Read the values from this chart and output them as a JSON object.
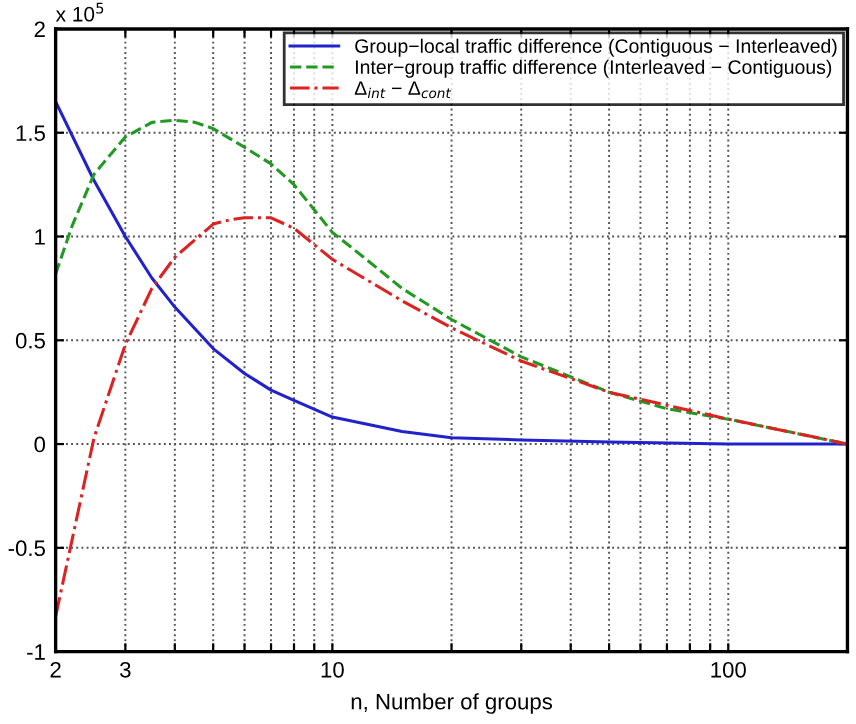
{
  "chart_data": {
    "type": "line",
    "xlabel": "n, Number of groups",
    "annotations": [
      "x 10$^{5}$"
    ],
    "log": "x",
    "grid": true,
    "legend": "top right",
    "marker": "none",
    "xlim": [
      2,
      200
    ],
    "ylim": [
      -1,
      2
    ],
    "xticks": [
      2,
      3,
      {
        "value": 4,
        "label": null
      },
      {
        "value": 5,
        "label": null
      },
      {
        "value": 6,
        "label": null
      },
      {
        "value": 7,
        "label": null
      },
      {
        "value": 8,
        "label": null
      },
      {
        "value": 9,
        "label": null
      },
      10,
      {
        "value": 20,
        "label": null
      },
      {
        "value": 30,
        "label": null
      },
      {
        "value": 40,
        "label": null
      },
      {
        "value": 50,
        "label": null
      },
      {
        "value": 60,
        "label": null
      },
      {
        "value": 70,
        "label": null
      },
      {
        "value": 80,
        "label": null
      },
      {
        "value": 90,
        "label": null
      },
      100,
      {
        "value": 200,
        "label": null
      }
    ],
    "yticks": [
      -1,
      -0.5,
      0,
      0.5,
      1,
      1.5,
      2
    ],
    "series": [
      {
        "name": "Group−local traffic difference (Contiguous − Interleaved)",
        "color": "#2222cc",
        "line_style": "solid",
        "x": [
          2,
          2.5,
          3,
          3.5,
          4,
          5,
          6,
          7,
          8,
          10,
          15,
          20,
          30,
          50,
          100,
          200
        ],
        "values": [
          1.65,
          1.27,
          1.0,
          0.8,
          0.66,
          0.46,
          0.34,
          0.26,
          0.21,
          0.13,
          0.06,
          0.03,
          0.02,
          0.01,
          0,
          0
        ]
      },
      {
        "name": "Inter−group traffic difference (Interleaved − Contiguous)",
        "color": "#229922",
        "line_style": "dashed",
        "x": [
          2,
          2.2,
          2.5,
          3,
          3.5,
          4,
          4.5,
          5,
          6,
          7,
          8,
          10,
          12,
          15,
          20,
          30,
          50,
          70,
          100,
          150,
          200
        ],
        "values": [
          0.82,
          1.05,
          1.3,
          1.48,
          1.55,
          1.56,
          1.55,
          1.52,
          1.43,
          1.35,
          1.25,
          1.02,
          0.9,
          0.75,
          0.6,
          0.42,
          0.25,
          0.17,
          0.12,
          0.05,
          0
        ]
      },
      {
        "name": "Δ$_{int}$ − Δ$_{cont}$",
        "color": "#dd2222",
        "line_style": "dashdot",
        "x": [
          2,
          2.5,
          3,
          3.5,
          4,
          5,
          5.5,
          6,
          7,
          8,
          10,
          12,
          15,
          20,
          30,
          50,
          100,
          200
        ],
        "values": [
          -0.83,
          0.03,
          0.48,
          0.75,
          0.9,
          1.06,
          1.08,
          1.09,
          1.09,
          1.04,
          0.89,
          0.8,
          0.69,
          0.56,
          0.4,
          0.25,
          0.12,
          0
        ]
      }
    ]
  }
}
